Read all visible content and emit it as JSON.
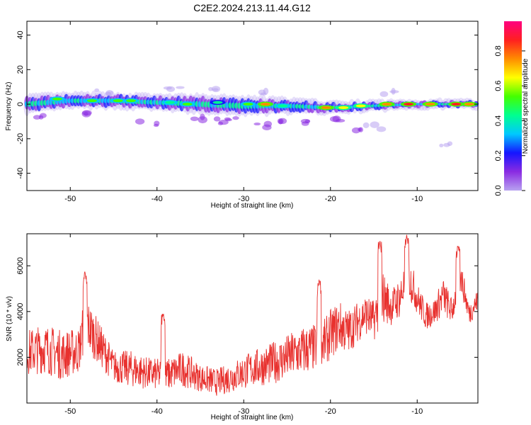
{
  "title": "C2E2.2024.213.11.44.G12",
  "chart_data": [
    {
      "type": "heatmap",
      "xlabel": "Height of straight line (km)",
      "ylabel": "Frequency (Hz)",
      "xlim": [
        -55,
        -3
      ],
      "ylim": [
        -50,
        48
      ],
      "x_ticks": [
        -50,
        -40,
        -30,
        -20,
        -10
      ],
      "y_ticks": [
        -40,
        -20,
        0,
        20,
        40
      ],
      "grid": false,
      "colorbar": {
        "label": "Normalized spectral amplitude",
        "range": [
          0,
          0.97
        ],
        "ticks": [
          0.0,
          0.2,
          0.4,
          0.6,
          0.8
        ],
        "colormap": [
          "#b8a2f0",
          "#8a2be2",
          "#1515ff",
          "#00c8ff",
          "#00ff90",
          "#44ff00",
          "#ffff00",
          "#ff8c00",
          "#ff2020",
          "#ff0080"
        ]
      },
      "band": {
        "profile_x": [
          -55,
          -50,
          -45,
          -40,
          -35,
          -30,
          -25,
          -20,
          -15,
          -10,
          -5,
          -3
        ],
        "profile_center_hz": [
          0,
          2,
          2,
          1,
          0,
          -1,
          -1,
          -2,
          -1,
          0,
          0,
          0
        ],
        "profile_halfwidth_hz": [
          5,
          4,
          4,
          4,
          5,
          5,
          4,
          3,
          2.5,
          2,
          2,
          2
        ]
      },
      "hotspots": [
        {
          "x": -51.5,
          "y": 3,
          "value": 0.6
        },
        {
          "x": -47.5,
          "y": 2,
          "value": 0.55
        },
        {
          "x": -44.5,
          "y": 2,
          "value": 0.6
        },
        {
          "x": -43,
          "y": 2,
          "value": 0.55
        },
        {
          "x": -38.5,
          "y": 1,
          "value": 0.5
        },
        {
          "x": -36.5,
          "y": 0,
          "value": 0.55
        },
        {
          "x": -33,
          "y": 1,
          "value": 0.45
        },
        {
          "x": -29.5,
          "y": 0,
          "value": 0.6
        },
        {
          "x": -27.5,
          "y": 0,
          "value": 0.85
        },
        {
          "x": -25.5,
          "y": -1,
          "value": 0.5
        },
        {
          "x": -20.5,
          "y": -2,
          "value": 0.85
        },
        {
          "x": -18.5,
          "y": -2,
          "value": 0.75
        },
        {
          "x": -16.5,
          "y": -1,
          "value": 0.7
        },
        {
          "x": -13.5,
          "y": 0,
          "value": 0.8
        },
        {
          "x": -11,
          "y": 0,
          "value": 0.9
        },
        {
          "x": -8.5,
          "y": 0,
          "value": 0.85
        },
        {
          "x": -5.5,
          "y": 0,
          "value": 0.9
        },
        {
          "x": -4,
          "y": 0,
          "value": 0.8
        }
      ],
      "scatter_blobs": [
        {
          "x": -53,
          "y": -7,
          "value": 0.15
        },
        {
          "x": -48,
          "y": -6,
          "value": 0.12
        },
        {
          "x": -46,
          "y": 7,
          "value": 0.1
        },
        {
          "x": -41,
          "y": -11,
          "value": 0.12
        },
        {
          "x": -38,
          "y": 9,
          "value": 0.08
        },
        {
          "x": -35,
          "y": -8,
          "value": 0.15
        },
        {
          "x": -33,
          "y": -10,
          "value": 0.2
        },
        {
          "x": -31,
          "y": -9,
          "value": 0.15
        },
        {
          "x": -28,
          "y": -12,
          "value": 0.12
        },
        {
          "x": -25,
          "y": -9,
          "value": 0.15
        },
        {
          "x": -23,
          "y": -11,
          "value": 0.15
        },
        {
          "x": -19,
          "y": -10,
          "value": 0.2
        },
        {
          "x": -17,
          "y": -15,
          "value": 0.18
        },
        {
          "x": -15,
          "y": -13,
          "value": 0.1
        },
        {
          "x": -33,
          "y": 9,
          "value": 0.1
        },
        {
          "x": -27,
          "y": 7,
          "value": 0.06
        },
        {
          "x": -7,
          "y": -23,
          "value": 0.05
        },
        {
          "x": -13,
          "y": 7,
          "value": 0.06
        }
      ]
    },
    {
      "type": "line",
      "xlabel": "Height of straight line (km)",
      "ylabel": "SNR (10 * v/v)",
      "xlim": [
        -55,
        -3
      ],
      "ylim": [
        0,
        7400
      ],
      "x_ticks": [
        -50,
        -40,
        -30,
        -20,
        -10
      ],
      "y_ticks": [
        2000,
        4000,
        6000
      ],
      "grid": false,
      "series": [
        {
          "color": "#e8312e",
          "x": [
            -55,
            -53,
            -51,
            -49,
            -48.3,
            -47,
            -45,
            -43,
            -41,
            -39,
            -37,
            -35,
            -33,
            -31,
            -29,
            -27,
            -25,
            -23,
            -21,
            -20,
            -19,
            -18,
            -17,
            -16,
            -15,
            -14,
            -13,
            -12,
            -11,
            -10,
            -9,
            -8,
            -7,
            -6,
            -5,
            -4,
            -3
          ],
          "mean": [
            2200,
            2400,
            2100,
            2300,
            3600,
            2800,
            1600,
            1500,
            1300,
            1200,
            1500,
            1100,
            900,
            1200,
            1500,
            1700,
            2000,
            2300,
            2500,
            3000,
            3400,
            3100,
            3500,
            3900,
            3600,
            4700,
            4200,
            4600,
            5600,
            4600,
            3800,
            4000,
            4700,
            4000,
            5600,
            3900,
            4500
          ],
          "spread": [
            1000,
            1100,
            1100,
            1000,
            1200,
            1000,
            700,
            800,
            700,
            700,
            800,
            600,
            600,
            700,
            800,
            900,
            1000,
            1100,
            1000,
            1100,
            1100,
            1000,
            900,
            900,
            900,
            1200,
            800,
            900,
            1000,
            700,
            600,
            600,
            800,
            600,
            700,
            500,
            500
          ],
          "peaks": [
            {
              "x": -48.3,
              "y": 5750
            },
            {
              "x": -39.3,
              "y": 3900
            },
            {
              "x": -21.3,
              "y": 5400
            },
            {
              "x": -14.3,
              "y": 7100
            },
            {
              "x": -11.2,
              "y": 7350
            },
            {
              "x": -5.3,
              "y": 6900
            }
          ]
        }
      ]
    }
  ]
}
